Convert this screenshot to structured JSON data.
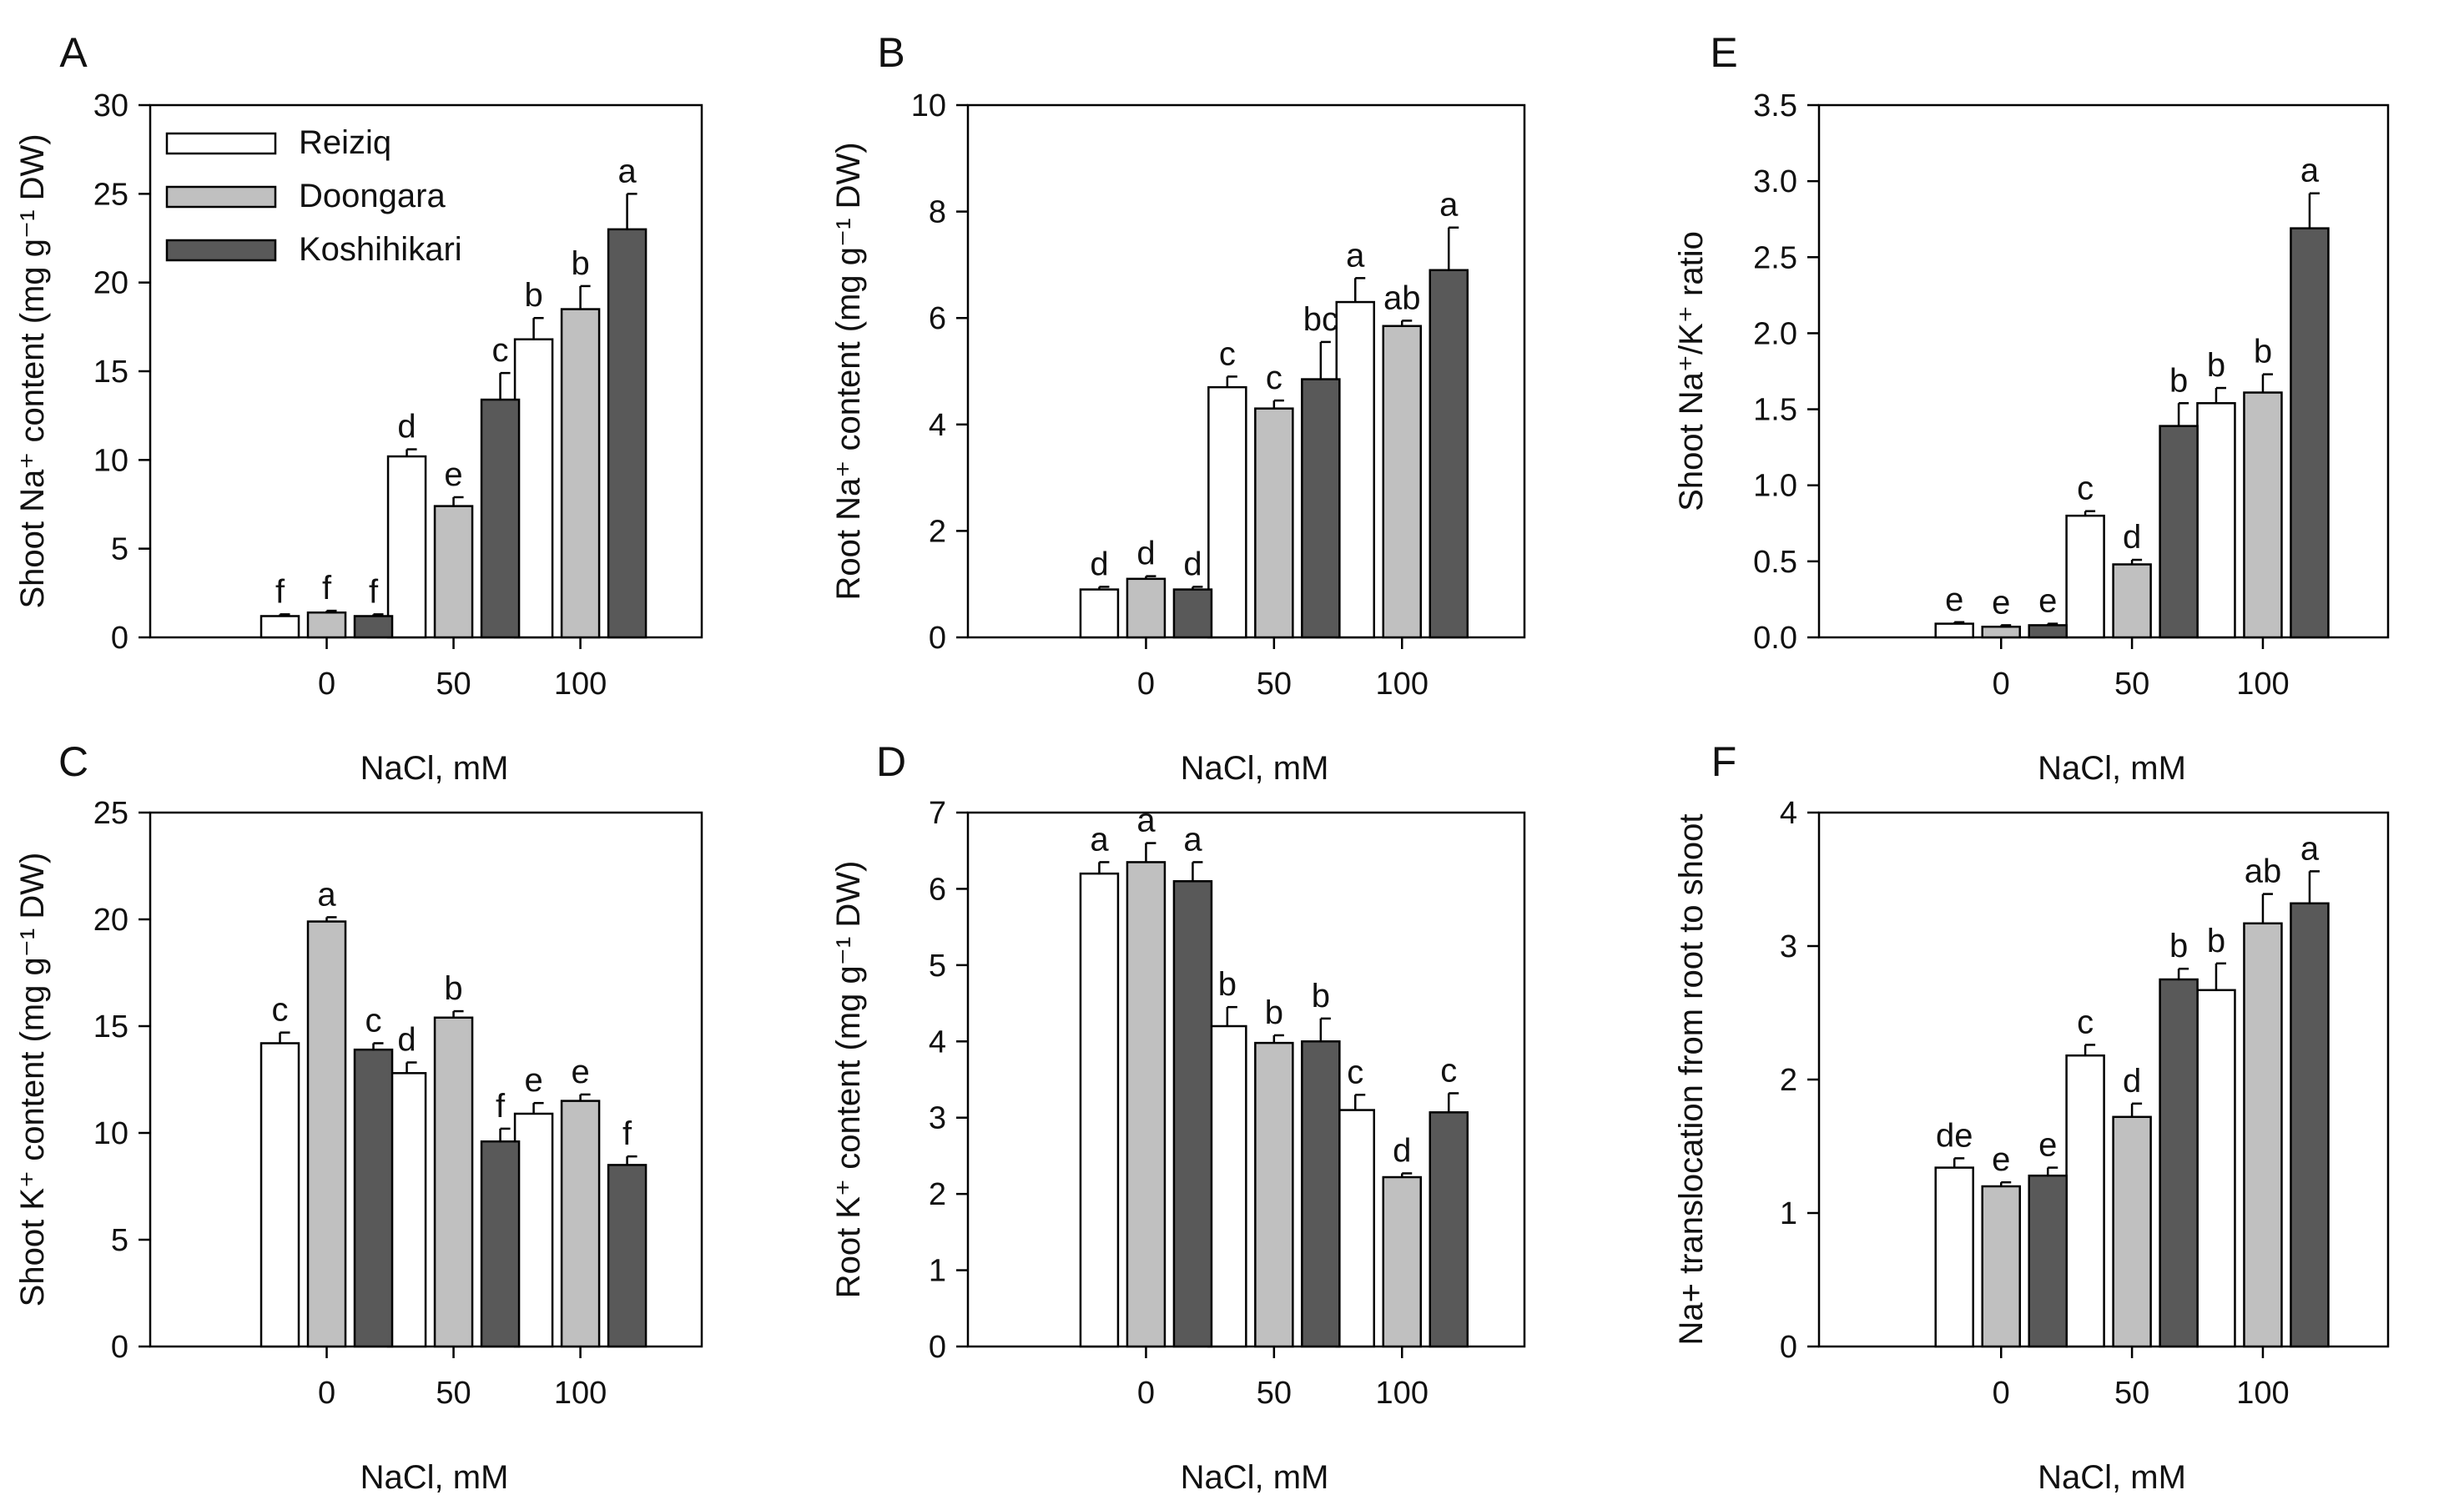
{
  "figure_xlabel": "NaCl, mM",
  "legend": {
    "entries": [
      {
        "name": "Reiziq",
        "color": "#ffffff"
      },
      {
        "name": "Doongara",
        "color": "#c0c0c0"
      },
      {
        "name": "Koshihikari",
        "color": "#595959"
      }
    ]
  },
  "chart_data": [
    {
      "panel": "A",
      "type": "bar",
      "categories": [
        "0",
        "50",
        "100"
      ],
      "xlabel": "NaCl, mM",
      "ylabel": "Shoot Na⁺ content (mg g⁻¹ DW)",
      "ylim": [
        0,
        30
      ],
      "yticks": [
        0,
        5,
        10,
        15,
        20,
        25,
        30
      ],
      "series": [
        {
          "name": "Reiziq",
          "values": [
            1.2,
            10.2,
            16.8
          ],
          "errors": [
            0.1,
            0.4,
            1.2
          ],
          "letters": [
            "f",
            "d",
            "b"
          ]
        },
        {
          "name": "Doongara",
          "values": [
            1.4,
            7.4,
            18.5
          ],
          "errors": [
            0.1,
            0.5,
            1.3
          ],
          "letters": [
            "f",
            "e",
            "b"
          ]
        },
        {
          "name": "Koshihikari",
          "values": [
            1.2,
            13.4,
            23.0
          ],
          "errors": [
            0.1,
            1.5,
            2.0
          ],
          "letters": [
            "f",
            "c",
            "a"
          ]
        }
      ]
    },
    {
      "panel": "B",
      "type": "bar",
      "categories": [
        "0",
        "50",
        "100"
      ],
      "xlabel": "NaCl, mM",
      "ylabel": "Root Na⁺ content (mg g⁻¹ DW)",
      "ylim": [
        0,
        10
      ],
      "yticks": [
        0,
        2,
        4,
        6,
        8,
        10
      ],
      "series": [
        {
          "name": "Reiziq",
          "values": [
            0.9,
            4.7,
            6.3
          ],
          "errors": [
            0.05,
            0.2,
            0.45
          ],
          "letters": [
            "d",
            "c",
            "a"
          ]
        },
        {
          "name": "Doongara",
          "values": [
            1.1,
            4.3,
            5.85
          ],
          "errors": [
            0.05,
            0.15,
            0.1
          ],
          "letters": [
            "d",
            "c",
            "ab"
          ]
        },
        {
          "name": "Koshihikari",
          "values": [
            0.9,
            4.85,
            6.9
          ],
          "errors": [
            0.05,
            0.7,
            0.8
          ],
          "letters": [
            "d",
            "bc",
            "a"
          ]
        }
      ]
    },
    {
      "panel": "E",
      "type": "bar",
      "categories": [
        "0",
        "50",
        "100"
      ],
      "xlabel": "NaCl, mM",
      "ylabel": "Shoot Na⁺/K⁺ ratio",
      "ylim": [
        0,
        3.5
      ],
      "yticks": [
        0.0,
        0.5,
        1.0,
        1.5,
        2.0,
        2.5,
        3.0,
        3.5
      ],
      "series": [
        {
          "name": "Reiziq",
          "values": [
            0.09,
            0.8,
            1.54
          ],
          "errors": [
            0.01,
            0.03,
            0.1
          ],
          "letters": [
            "e",
            "c",
            "b"
          ]
        },
        {
          "name": "Doongara",
          "values": [
            0.07,
            0.48,
            1.61
          ],
          "errors": [
            0.01,
            0.03,
            0.12
          ],
          "letters": [
            "e",
            "d",
            "b"
          ]
        },
        {
          "name": "Koshihikari",
          "values": [
            0.08,
            1.39,
            2.69
          ],
          "errors": [
            0.01,
            0.15,
            0.23
          ],
          "letters": [
            "e",
            "b",
            "a"
          ]
        }
      ]
    },
    {
      "panel": "C",
      "type": "bar",
      "categories": [
        "0",
        "50",
        "100"
      ],
      "xlabel": "NaCl, mM",
      "ylabel": "Shoot K⁺ content (mg g⁻¹ DW)",
      "ylim": [
        0,
        25
      ],
      "yticks": [
        0,
        5,
        10,
        15,
        20,
        25
      ],
      "series": [
        {
          "name": "Reiziq",
          "values": [
            14.2,
            12.8,
            10.9
          ],
          "errors": [
            0.5,
            0.5,
            0.5
          ],
          "letters": [
            "c",
            "d",
            "e"
          ]
        },
        {
          "name": "Doongara",
          "values": [
            19.9,
            15.4,
            11.5
          ],
          "errors": [
            0.2,
            0.3,
            0.3
          ],
          "letters": [
            "a",
            "b",
            "e"
          ]
        },
        {
          "name": "Koshihikari",
          "values": [
            13.9,
            9.6,
            8.5
          ],
          "errors": [
            0.3,
            0.6,
            0.4
          ],
          "letters": [
            "c",
            "f",
            "f"
          ]
        }
      ]
    },
    {
      "panel": "D",
      "type": "bar",
      "categories": [
        "0",
        "50",
        "100"
      ],
      "xlabel": "NaCl, mM",
      "ylabel": "Root K⁺ content (mg g⁻¹ DW)",
      "ylim": [
        0,
        7
      ],
      "yticks": [
        0,
        1,
        2,
        3,
        4,
        5,
        6,
        7
      ],
      "series": [
        {
          "name": "Reiziq",
          "values": [
            6.2,
            4.2,
            3.1
          ],
          "errors": [
            0.15,
            0.25,
            0.2
          ],
          "letters": [
            "a",
            "b",
            "c"
          ]
        },
        {
          "name": "Doongara",
          "values": [
            6.35,
            3.98,
            2.22
          ],
          "errors": [
            0.25,
            0.1,
            0.05
          ],
          "letters": [
            "a",
            "b",
            "d"
          ]
        },
        {
          "name": "Koshihikari",
          "values": [
            6.1,
            4.0,
            3.07
          ],
          "errors": [
            0.25,
            0.3,
            0.25
          ],
          "letters": [
            "a",
            "b",
            "c"
          ]
        }
      ]
    },
    {
      "panel": "F",
      "type": "bar",
      "categories": [
        "0",
        "50",
        "100"
      ],
      "xlabel": "NaCl, mM",
      "ylabel": "Na+ translocation from root to shoot",
      "ylim": [
        0,
        4
      ],
      "yticks": [
        0,
        1,
        2,
        3,
        4
      ],
      "series": [
        {
          "name": "Reiziq",
          "values": [
            1.34,
            2.18,
            2.67
          ],
          "errors": [
            0.07,
            0.08,
            0.2
          ],
          "letters": [
            "de",
            "c",
            "b"
          ]
        },
        {
          "name": "Doongara",
          "values": [
            1.2,
            1.72,
            3.17
          ],
          "errors": [
            0.03,
            0.1,
            0.22
          ],
          "letters": [
            "e",
            "d",
            "ab"
          ]
        },
        {
          "name": "Koshihikari",
          "values": [
            1.28,
            2.75,
            3.32
          ],
          "errors": [
            0.06,
            0.08,
            0.24
          ],
          "letters": [
            "e",
            "b",
            "a"
          ]
        }
      ]
    }
  ]
}
